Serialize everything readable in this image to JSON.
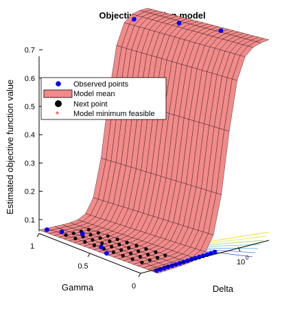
{
  "chart_data": {
    "type": "surface",
    "title": "Objective function model",
    "zlabel": "Estimated objective function value",
    "xlabel": "Gamma",
    "ylabel": "Delta",
    "z_ticks": [
      "0.1",
      "0.2",
      "0.3",
      "0.4",
      "0.5",
      "0.6",
      "0.7"
    ],
    "z_tick_values": [
      0.1,
      0.2,
      0.3,
      0.4,
      0.5,
      0.6,
      0.7
    ],
    "gamma_ticks": [
      "1",
      "0.5",
      "0"
    ],
    "gamma_tick_values": [
      1,
      0.5,
      0
    ],
    "delta_tick_labels": [
      {
        "base": "10",
        "exp": "0"
      }
    ],
    "delta_scale": "log",
    "surface_levels": {
      "low": 0.02,
      "high": 0.72
    },
    "legend": {
      "placement": "upper-left",
      "entries": [
        {
          "label": "Observed points",
          "marker": "blue-dot"
        },
        {
          "label": "Model mean",
          "marker": "salmon-patch"
        },
        {
          "label": "Next point",
          "marker": "black-dot"
        },
        {
          "label": "Model minimum feasible",
          "marker": "red-asterisk"
        }
      ]
    },
    "colors": {
      "surface": "#f28a8a",
      "mesh": "#000000",
      "observed": "#0000ff",
      "next_point": "#000000",
      "minimum": "#ff0000"
    }
  }
}
